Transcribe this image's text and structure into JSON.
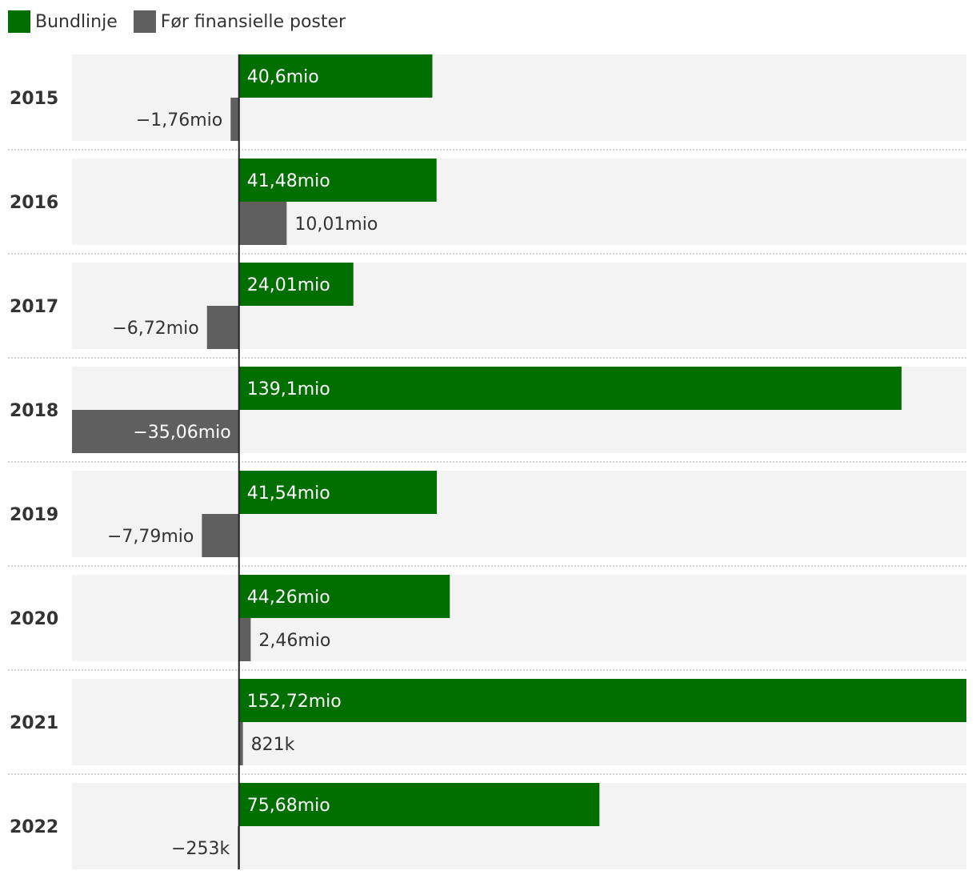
{
  "legend": {
    "items": [
      {
        "label": "Bundlinje",
        "color": "#006f00"
      },
      {
        "label": "Før finansielle poster",
        "color": "#5f5f5f"
      }
    ]
  },
  "colors": {
    "panel_bg": "#f3f3f3",
    "separator": "#c8c8c8",
    "axis": "#222222",
    "label_on_bar": "#ffffff",
    "label_outside": "#333333"
  },
  "chart_data": {
    "type": "bar",
    "orientation": "horizontal",
    "categories": [
      "2015",
      "2016",
      "2017",
      "2018",
      "2019",
      "2020",
      "2021",
      "2022"
    ],
    "series": [
      {
        "name": "Bundlinje",
        "color": "#006f00",
        "values": [
          40.6,
          41.48,
          24.01,
          139.1,
          41.54,
          44.26,
          152.72,
          75.68
        ],
        "labels": [
          "40,6mio",
          "41,48mio",
          "24,01mio",
          "139,1mio",
          "41,54mio",
          "44,26mio",
          "152,72mio",
          "75,68mio"
        ]
      },
      {
        "name": "Før finansielle poster",
        "color": "#5f5f5f",
        "values": [
          -1.76,
          10.01,
          -6.72,
          -35.06,
          -7.79,
          2.46,
          0.821,
          -0.253
        ],
        "labels": [
          "−1,76mio",
          "10,01mio",
          "−6,72mio",
          "−35,06mio",
          "−7,79mio",
          "2,46mio",
          "821k",
          "−253k"
        ]
      }
    ],
    "unit": "mio",
    "xlim": [
      -35.06,
      152.72
    ],
    "grid": false,
    "legend_position": "top-left"
  }
}
